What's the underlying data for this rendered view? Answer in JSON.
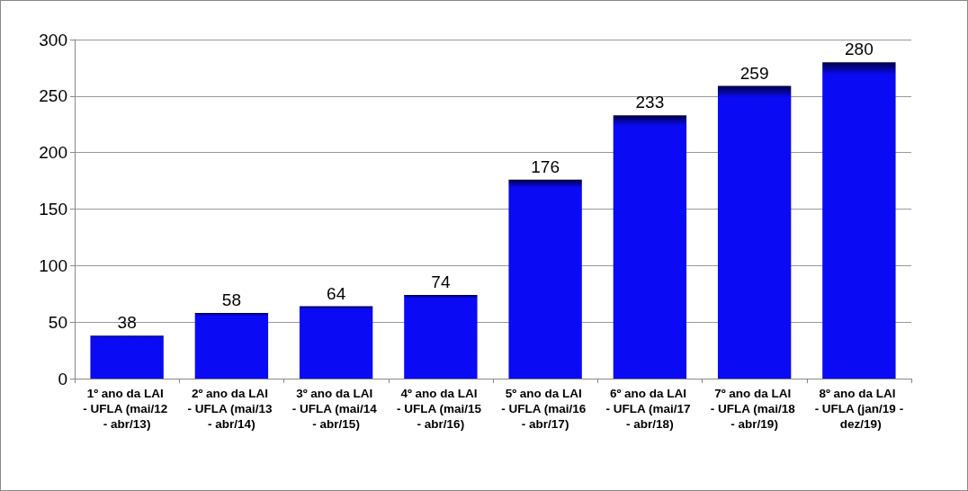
{
  "chart_data": {
    "type": "bar",
    "categories": [
      "1º ano da LAI - UFLA (mai/12 - abr/13)",
      "2º ano da LAI - UFLA (mai/13 - abr/14)",
      "3º ano da LAI - UFLA (mai/14 - abr/15)",
      "4º ano da LAI - UFLA (mai/15 - abr/16)",
      "5º ano da LAI - UFLA (mai/16 - abr/17)",
      "6º ano da LAI - UFLA (mai/17 - abr/18)",
      "7º ano da LAI - UFLA (mai/18 - abr/19)",
      "8º ano da LAI - UFLA (jan/19 - dez/19)"
    ],
    "values": [
      38,
      58,
      64,
      74,
      176,
      233,
      259,
      280
    ],
    "color": "#0a0af5",
    "ylim": [
      0,
      300
    ],
    "yticks": [
      0,
      50,
      100,
      150,
      200,
      250,
      300
    ],
    "grid": "y",
    "data_labels": true
  }
}
